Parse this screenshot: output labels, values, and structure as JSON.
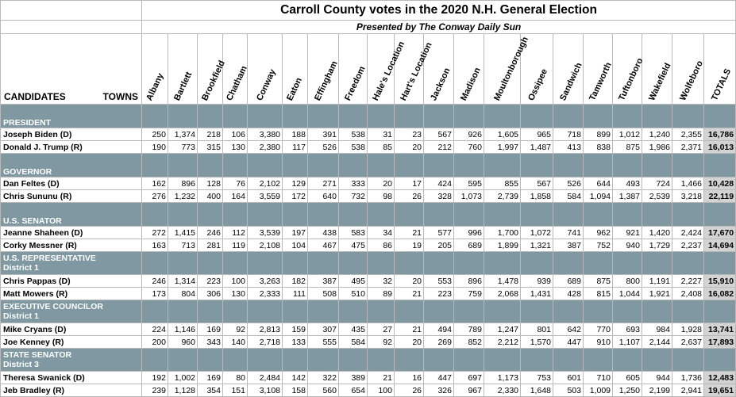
{
  "title": "Carroll County votes in the 2020 N.H. General Election",
  "subtitle": "Presented by The Conway Daily Sun",
  "header": {
    "candidates_label": "CANDIDATES",
    "towns_label": "TOWNS",
    "towns": [
      "Albany",
      "Bartlett",
      "Brookfield",
      "Chatham",
      "Conway",
      "Eaton",
      "Effingham",
      "Freedom",
      "Hale's Location",
      "Hart's Location",
      "Jackson",
      "Madison",
      "Moultonborough",
      "Ossipee",
      "Sandwich",
      "Tamworth",
      "Tuftonboro",
      "Wakefield",
      "Wolfeboro"
    ],
    "totals_label": "TOTALS"
  },
  "sections": [
    {
      "title": "PRESIDENT",
      "subtitle": "",
      "rows": [
        {
          "name": "Joseph Biden (D)",
          "values": [
            "250",
            "1,374",
            "218",
            "106",
            "3,380",
            "188",
            "391",
            "538",
            "31",
            "23",
            "567",
            "926",
            "1,605",
            "965",
            "718",
            "899",
            "1,012",
            "1,240",
            "2,355"
          ],
          "total": "16,786"
        },
        {
          "name": "Donald J. Trump (R)",
          "values": [
            "190",
            "773",
            "315",
            "130",
            "2,380",
            "117",
            "526",
            "538",
            "85",
            "20",
            "212",
            "760",
            "1,997",
            "1,487",
            "413",
            "838",
            "875",
            "1,986",
            "2,371"
          ],
          "total": "16,013"
        }
      ]
    },
    {
      "title": "GOVERNOR",
      "subtitle": "",
      "rows": [
        {
          "name": "Dan Feltes (D)",
          "values": [
            "162",
            "896",
            "128",
            "76",
            "2,102",
            "129",
            "271",
            "333",
            "20",
            "17",
            "424",
            "595",
            "855",
            "567",
            "526",
            "644",
            "493",
            "724",
            "1,466"
          ],
          "total": "10,428"
        },
        {
          "name": "Chris Sununu (R)",
          "values": [
            "276",
            "1,232",
            "400",
            "164",
            "3,559",
            "172",
            "640",
            "732",
            "98",
            "26",
            "328",
            "1,073",
            "2,739",
            "1,858",
            "584",
            "1,094",
            "1,387",
            "2,539",
            "3,218"
          ],
          "total": "22,119"
        }
      ]
    },
    {
      "title": "U.S. SENATOR",
      "subtitle": "",
      "rows": [
        {
          "name": "Jeanne Shaheen (D)",
          "values": [
            "272",
            "1,415",
            "246",
            "112",
            "3,539",
            "197",
            "438",
            "583",
            "34",
            "21",
            "577",
            "996",
            "1,700",
            "1,072",
            "741",
            "962",
            "921",
            "1,420",
            "2,424"
          ],
          "total": "17,670"
        },
        {
          "name": "Corky Messner (R)",
          "values": [
            "163",
            "713",
            "281",
            "119",
            "2,108",
            "104",
            "467",
            "475",
            "86",
            "19",
            "205",
            "689",
            "1,899",
            "1,321",
            "387",
            "752",
            "940",
            "1,729",
            "2,237"
          ],
          "total": "14,694"
        }
      ]
    },
    {
      "title": "U.S. REPRESENTATIVE",
      "subtitle": "District 1",
      "rows": [
        {
          "name": "Chris Pappas (D)",
          "values": [
            "246",
            "1,314",
            "223",
            "100",
            "3,263",
            "182",
            "387",
            "495",
            "32",
            "20",
            "553",
            "896",
            "1,478",
            "939",
            "689",
            "875",
            "800",
            "1,191",
            "2,227"
          ],
          "total": "15,910"
        },
        {
          "name": "Matt Mowers (R)",
          "values": [
            "173",
            "804",
            "306",
            "130",
            "2,333",
            "111",
            "508",
            "510",
            "89",
            "21",
            "223",
            "759",
            "2,068",
            "1,431",
            "428",
            "815",
            "1,044",
            "1,921",
            "2,408"
          ],
          "total": "16,082"
        }
      ]
    },
    {
      "title": "EXECUTIVE COUNCILOR",
      "subtitle": "District 1",
      "rows": [
        {
          "name": "Mike Cryans (D)",
          "values": [
            "224",
            "1,146",
            "169",
            "92",
            "2,813",
            "159",
            "307",
            "435",
            "27",
            "21",
            "494",
            "789",
            "1,247",
            "801",
            "642",
            "770",
            "693",
            "984",
            "1,928"
          ],
          "total": "13,741"
        },
        {
          "name": "Joe Kenney (R)",
          "values": [
            "200",
            "960",
            "343",
            "140",
            "2,718",
            "133",
            "555",
            "584",
            "92",
            "20",
            "269",
            "852",
            "2,212",
            "1,570",
            "447",
            "910",
            "1,107",
            "2,144",
            "2,637"
          ],
          "total": "17,893"
        }
      ]
    },
    {
      "title": "STATE SENATOR",
      "subtitle": "District 3",
      "rows": [
        {
          "name": "Theresa Swanick (D)",
          "values": [
            "192",
            "1,002",
            "169",
            "80",
            "2,484",
            "142",
            "322",
            "389",
            "21",
            "16",
            "447",
            "697",
            "1,173",
            "753",
            "601",
            "710",
            "605",
            "944",
            "1,736"
          ],
          "total": "12,483"
        },
        {
          "name": "Jeb Bradley (R)",
          "values": [
            "239",
            "1,128",
            "354",
            "151",
            "3,108",
            "158",
            "560",
            "654",
            "100",
            "26",
            "326",
            "967",
            "2,330",
            "1,648",
            "503",
            "1,009",
            "1,250",
            "2,199",
            "2,941"
          ],
          "total": "19,651"
        }
      ]
    }
  ]
}
